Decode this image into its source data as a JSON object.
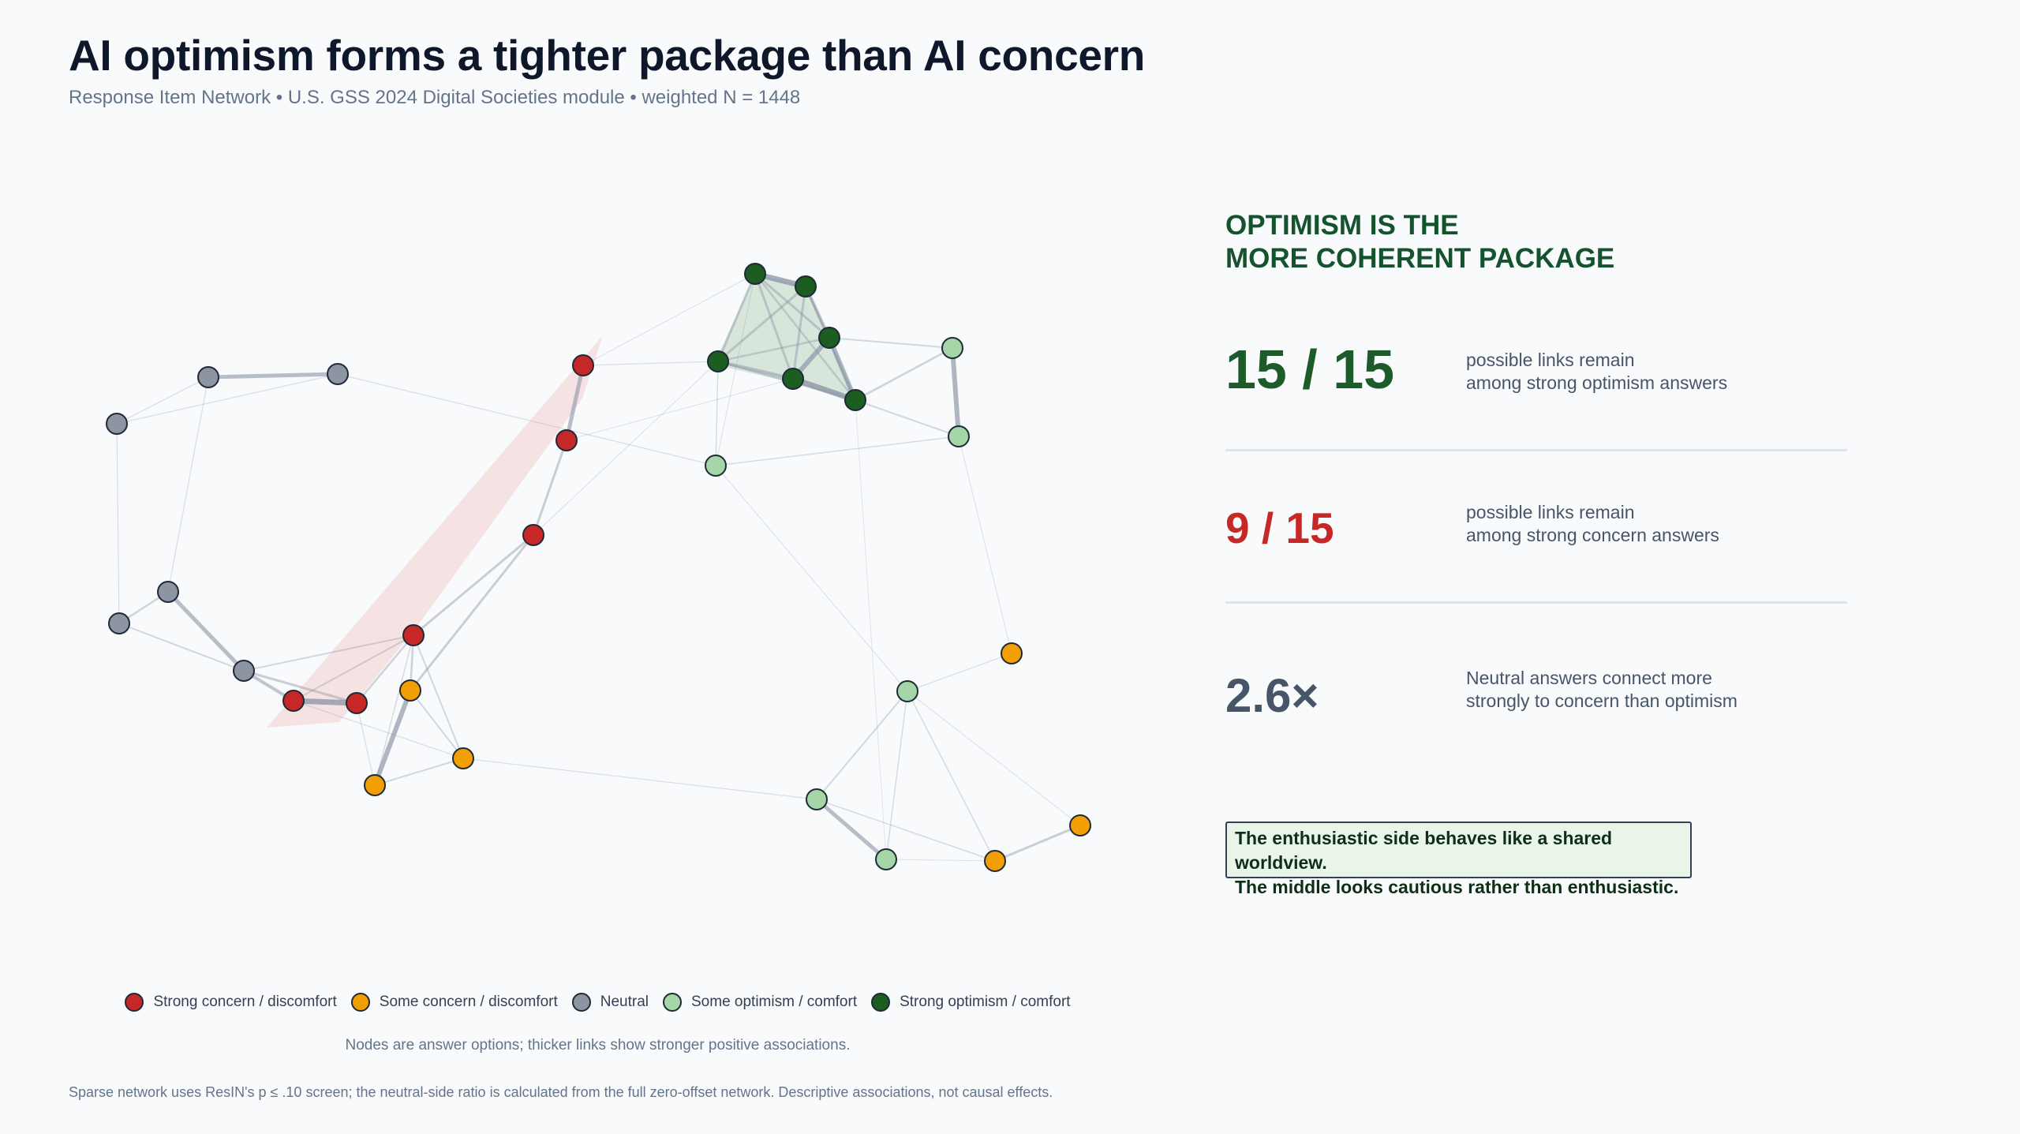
{
  "header": {
    "title": "AI optimism forms a tighter package than AI concern",
    "subtitle": "Response Item Network • U.S. GSS 2024 Digital Societies module • weighted N = 1448"
  },
  "panel": {
    "heading_line1": "OPTIMISM IS THE",
    "heading_line2": "MORE COHERENT PACKAGE",
    "stats": [
      {
        "value": "15 / 15",
        "line1": "possible links remain",
        "line2": "among strong optimism answers"
      },
      {
        "value": "9 / 15",
        "line1": "possible links remain",
        "line2": "among strong concern answers"
      },
      {
        "value": "2.6×",
        "line1": "Neutral answers connect more",
        "line2": "strongly to concern than optimism"
      }
    ],
    "callout_line1": "The enthusiastic side behaves like a shared worldview.",
    "callout_line2": "The middle looks cautious rather than enthusiastic."
  },
  "legend": [
    {
      "label": "Strong concern / discomfort",
      "color": "#c62828"
    },
    {
      "label": "Some concern / discomfort",
      "color": "#f29f05"
    },
    {
      "label": "Neutral",
      "color": "#8d95a3"
    },
    {
      "label": "Some optimism / comfort",
      "color": "#a5d6a7"
    },
    {
      "label": "Strong optimism / comfort",
      "color": "#1b5e20"
    }
  ],
  "note": "Nodes are answer options; thicker links show stronger positive associations.",
  "footer": "Sparse network uses ResIN's p ≤ .10 screen; the neutral-side ratio is calculated from the full zero-offset network. Descriptive associations, not causal effects.",
  "colors": {
    "strong_concern": "#c62828",
    "some_concern": "#f29f05",
    "neutral": "#8d95a3",
    "some_optimism": "#a5d6a7",
    "strong_optimism": "#1b5e20"
  }
}
